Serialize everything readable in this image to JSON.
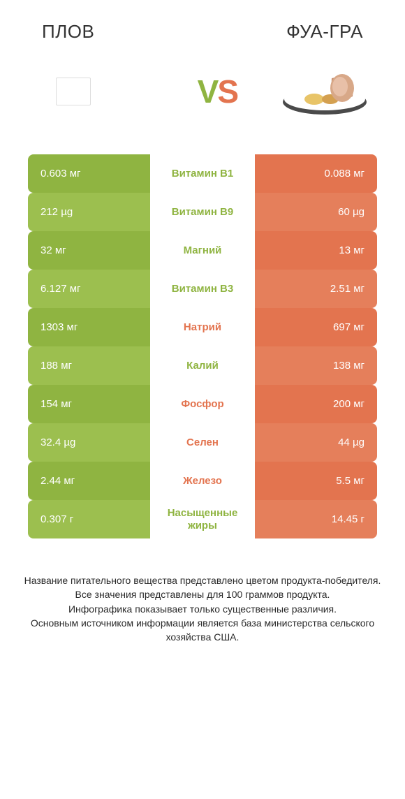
{
  "colors": {
    "green": "#8fb441",
    "green_alt": "#9cbf4f",
    "orange": "#e3744f",
    "orange_alt": "#e57f5b",
    "text_green": "#8fb441",
    "text_orange": "#e3744f"
  },
  "titles": {
    "left": "ПЛОВ",
    "right": "ФУА-ГРА"
  },
  "vs": {
    "v": "V",
    "s": "S"
  },
  "rows": [
    {
      "left": "0.603 мг",
      "label": "Витамин B1",
      "right": "0.088 мг",
      "winner": "left"
    },
    {
      "left": "212 µg",
      "label": "Витамин B9",
      "right": "60 µg",
      "winner": "left"
    },
    {
      "left": "32 мг",
      "label": "Магний",
      "right": "13 мг",
      "winner": "left"
    },
    {
      "left": "6.127 мг",
      "label": "Витамин B3",
      "right": "2.51 мг",
      "winner": "left"
    },
    {
      "left": "1303 мг",
      "label": "Натрий",
      "right": "697 мг",
      "winner": "right"
    },
    {
      "left": "188 мг",
      "label": "Калий",
      "right": "138 мг",
      "winner": "left"
    },
    {
      "left": "154 мг",
      "label": "Фосфор",
      "right": "200 мг",
      "winner": "right"
    },
    {
      "left": "32.4 µg",
      "label": "Селен",
      "right": "44 µg",
      "winner": "right"
    },
    {
      "left": "2.44 мг",
      "label": "Железо",
      "right": "5.5 мг",
      "winner": "right"
    },
    {
      "left": "0.307 г",
      "label": "Насыщенные жиры",
      "right": "14.45 г",
      "winner": "left"
    }
  ],
  "footnote": "Название питательного вещества представлено цветом продукта-победителя.\nВсе значения представлены для 100 граммов продукта.\nИнфографика показывает только существенные различия.\nОсновным источником информации является база министерства сельского хозяйства США."
}
